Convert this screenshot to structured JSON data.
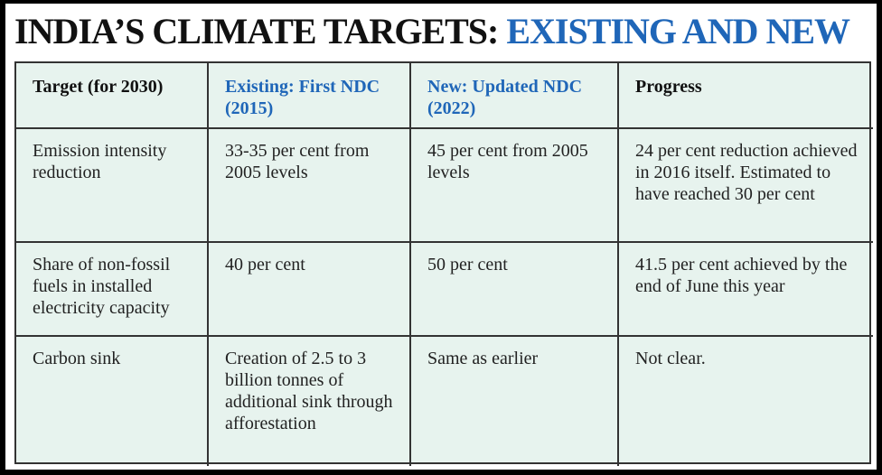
{
  "title": {
    "part1": "INDIA’S CLIMATE TARGETS: ",
    "part2": "EXISTING AND NEW"
  },
  "colors": {
    "accent": "#1f66b8",
    "table_bg": "#e7f3ee"
  },
  "table": {
    "headers": [
      "Target (for 2030)",
      "Existing: First NDC (2015)",
      "New: Updated NDC (2022)",
      "Progress"
    ],
    "rows": [
      {
        "target": "Emission intensity reduction",
        "existing": "33-35 per cent from 2005 levels",
        "new": "45 per cent from 2005 levels",
        "progress": "24 per cent reduction achieved in 2016 itself. Estimated to have reached 30 per cent"
      },
      {
        "target": "Share of non-fossil fuels in installed electricity capacity",
        "existing": "40 per cent",
        "new": "50 per cent",
        "progress": "41.5 per cent achieved by the end of June this year"
      },
      {
        "target": "Carbon sink",
        "existing": "Creation of 2.5 to 3 billion tonnes of additional sink through afforestation",
        "new": "Same as earlier",
        "progress": "Not clear."
      }
    ]
  }
}
